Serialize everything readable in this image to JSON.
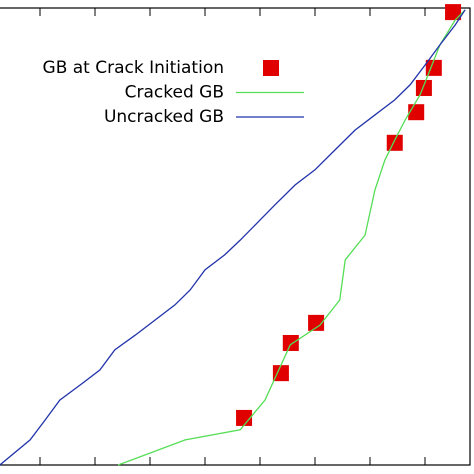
{
  "chart_data": {
    "type": "line",
    "xlim": [
      0,
      8.8
    ],
    "ylim": [
      0,
      1
    ],
    "xticks": [
      1,
      2,
      3,
      4,
      5,
      6,
      7,
      8
    ],
    "legend": "upper-left",
    "series": [
      {
        "name": "GB at Crack Initiation",
        "type": "scatter",
        "color": "#e00000",
        "x": [
          8.51,
          8.16,
          7.98,
          7.84,
          7.45,
          6.02,
          5.56,
          5.38,
          4.71
        ],
        "values": [
          0.991,
          0.869,
          0.825,
          0.772,
          0.705,
          0.311,
          0.267,
          0.201,
          0.103
        ]
      },
      {
        "name": "Cracked GB",
        "type": "line",
        "color": "#55dd55",
        "x": [
          2.42,
          3.64,
          4.64,
          5.09,
          5.55,
          6.09,
          6.45,
          6.55,
          6.91,
          7.09,
          7.27,
          7.45,
          7.64,
          7.91,
          8.09,
          8.27,
          8.55,
          8.73
        ],
        "values": [
          0,
          0.055,
          0.077,
          0.142,
          0.263,
          0.306,
          0.361,
          0.449,
          0.503,
          0.602,
          0.667,
          0.711,
          0.755,
          0.81,
          0.864,
          0.919,
          0.974,
          0.996
        ]
      },
      {
        "name": "Uncracked GB",
        "type": "line",
        "color": "#2233aa",
        "x": [
          0.27,
          0.82,
          1.09,
          1.36,
          1.73,
          2.09,
          2.36,
          2.73,
          3.09,
          3.45,
          3.73,
          4.0,
          4.36,
          4.64,
          5.0,
          5.27,
          5.64,
          6.0,
          6.36,
          6.73,
          7.09,
          7.45,
          7.73,
          8.0,
          8.27,
          8.55,
          8.73
        ],
        "values": [
          0,
          0.055,
          0.098,
          0.142,
          0.175,
          0.208,
          0.252,
          0.284,
          0.317,
          0.35,
          0.383,
          0.427,
          0.46,
          0.492,
          0.536,
          0.569,
          0.613,
          0.646,
          0.689,
          0.733,
          0.766,
          0.799,
          0.832,
          0.875,
          0.919,
          0.963,
          0.996
        ]
      }
    ]
  }
}
